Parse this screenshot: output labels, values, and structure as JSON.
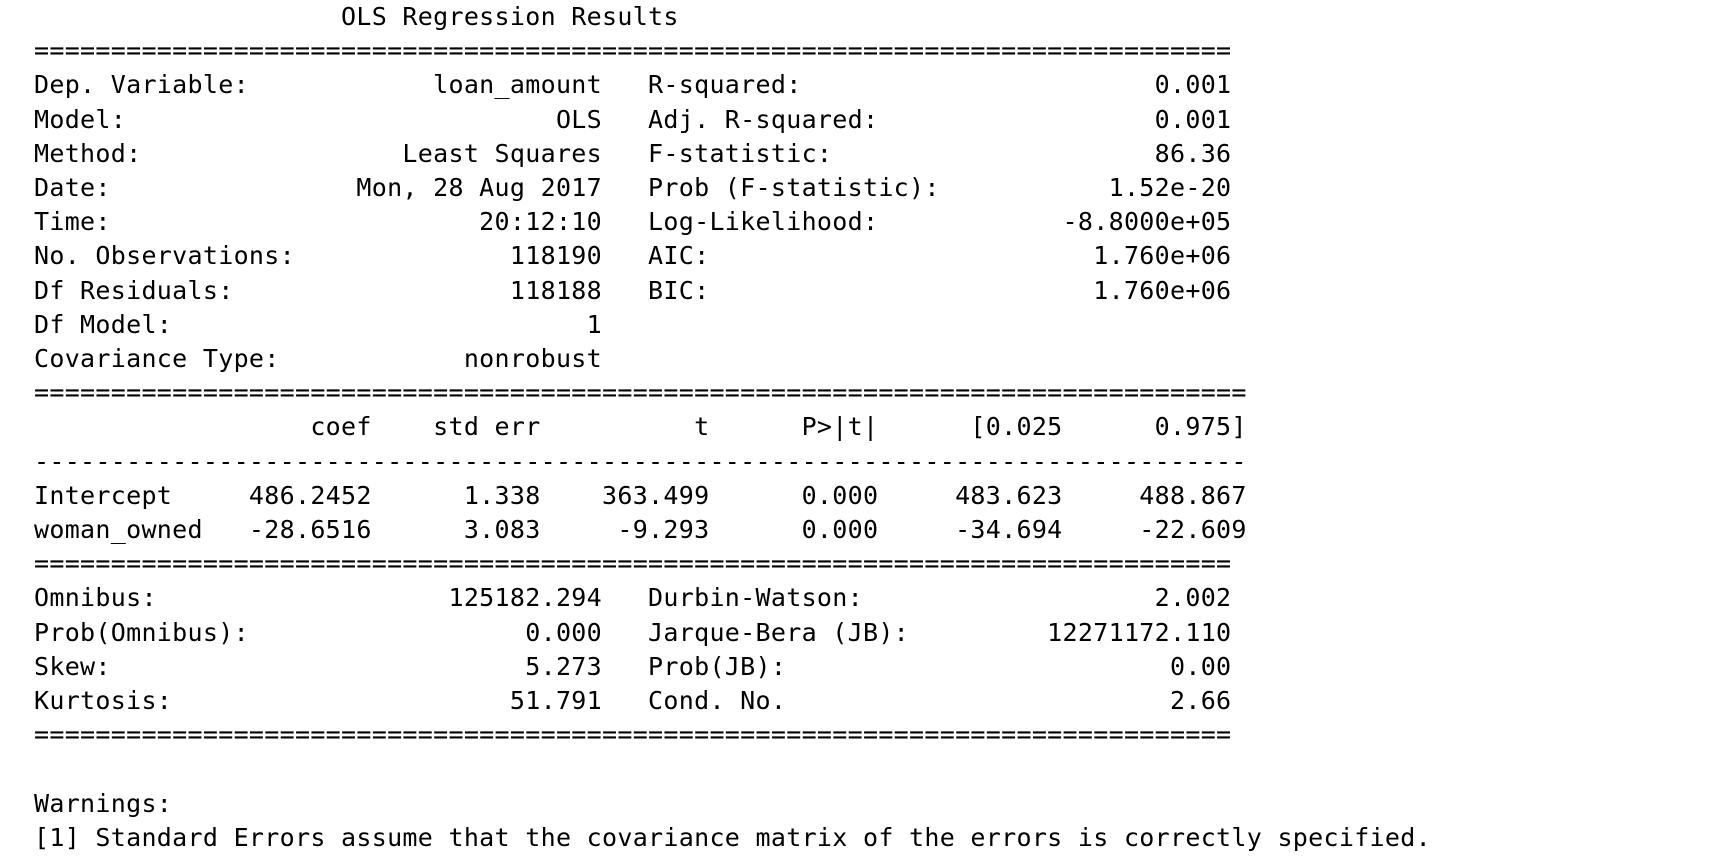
{
  "report": {
    "lines": [
      "                    OLS Regression Results                            ",
      "==============================================================================",
      "Dep. Variable:            loan_amount   R-squared:                       0.001",
      "Model:                            OLS   Adj. R-squared:                  0.001",
      "Method:                 Least Squares   F-statistic:                     86.36",
      "Date:                Mon, 28 Aug 2017   Prob (F-statistic):           1.52e-20",
      "Time:                        20:12:10   Log-Likelihood:            -8.8000e+05",
      "No. Observations:              118190   AIC:                         1.760e+06",
      "Df Residuals:                  118188   BIC:                         1.760e+06",
      "Df Model:                           1                                         ",
      "Covariance Type:            nonrobust                                         ",
      "===============================================================================",
      "                  coef    std err          t      P>|t|      [0.025      0.975]",
      "-------------------------------------------------------------------------------",
      "Intercept     486.2452      1.338    363.499      0.000     483.623     488.867",
      "woman_owned   -28.6516      3.083     -9.293      0.000     -34.694     -22.609",
      "==============================================================================",
      "Omnibus:                   125182.294   Durbin-Watson:                   2.002",
      "Prob(Omnibus):                  0.000   Jarque-Bera (JB):         12271172.110",
      "Skew:                           5.273   Prob(JB):                         0.00",
      "Kurtosis:                      51.791   Cond. No.                         2.66",
      "==============================================================================",
      "",
      "Warnings:",
      "[1] Standard Errors assume that the covariance matrix of the errors is correctly specified."
    ]
  }
}
